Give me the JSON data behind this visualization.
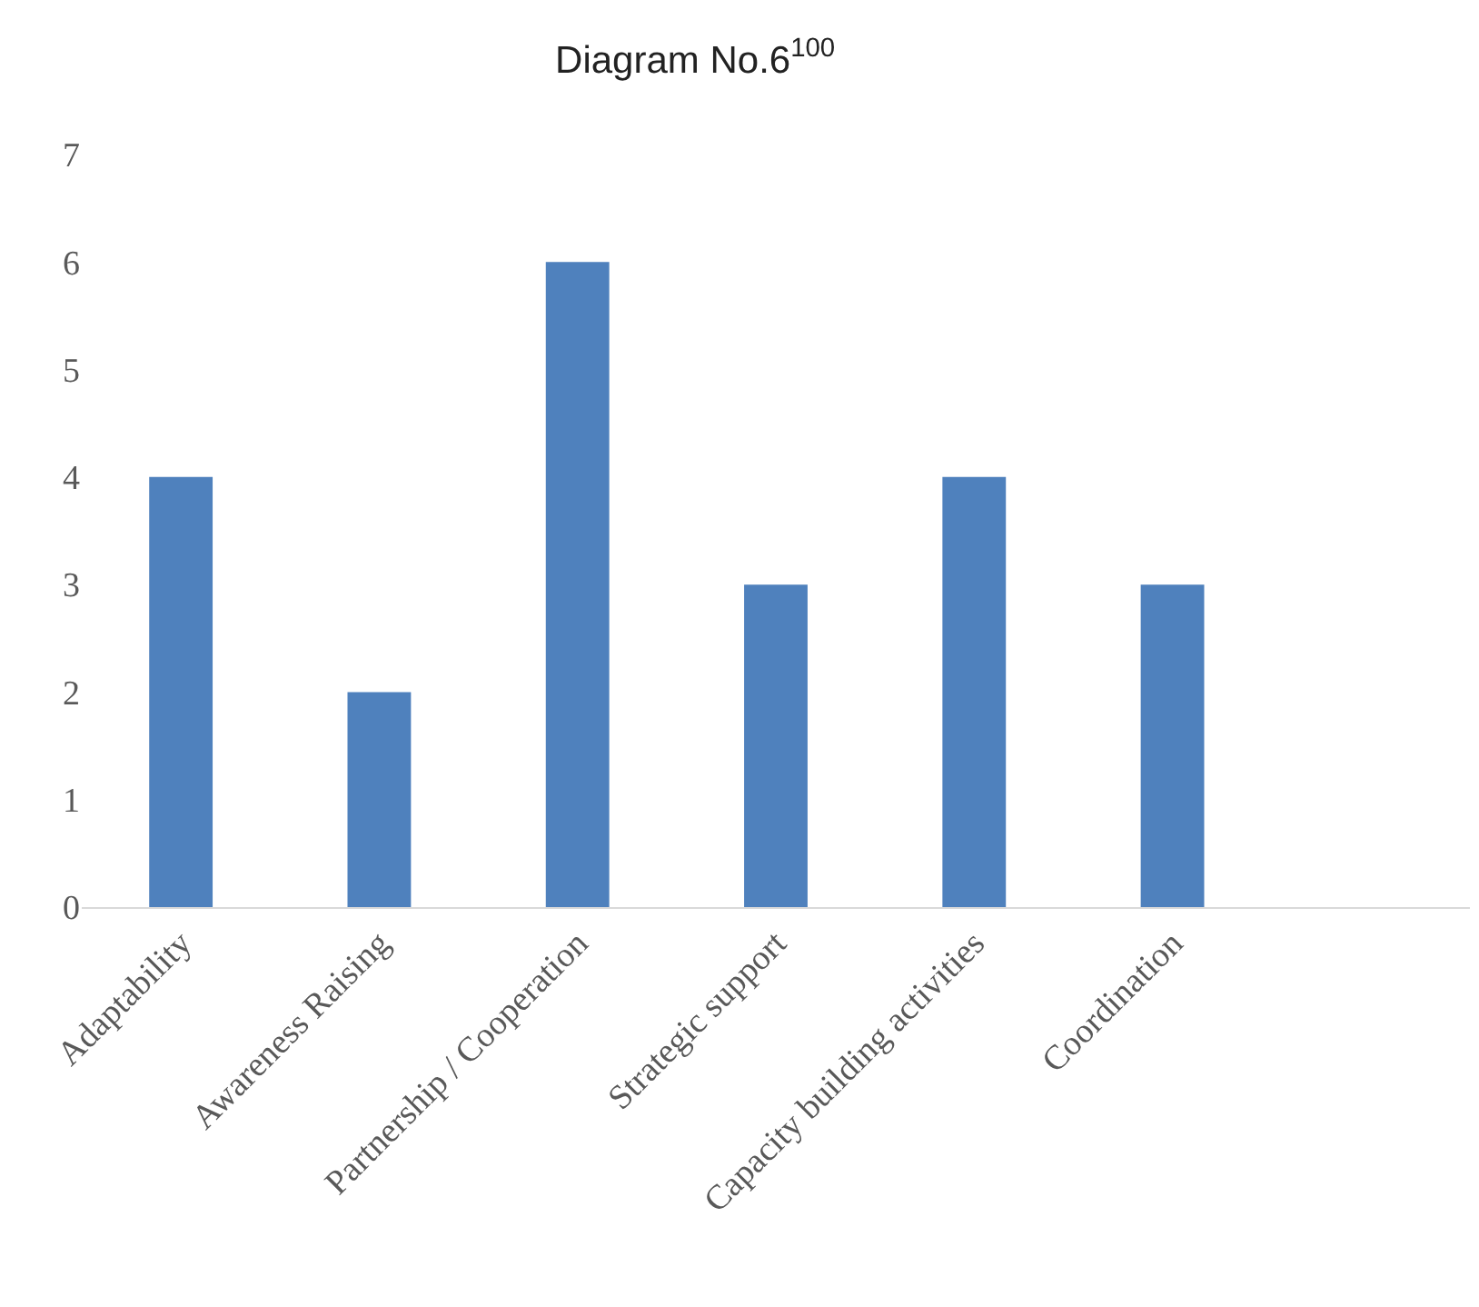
{
  "chart_data": {
    "type": "bar",
    "title": "Diagram No.6$^{100}$",
    "categories": [
      "Adaptability",
      "Awareness Raising",
      "Partnership / Cooperation",
      "Strategic support",
      "Capacity building activities",
      "Coordination",
      null
    ],
    "values": [
      4,
      2,
      6,
      3,
      4,
      3,
      null
    ],
    "color": "#4f81bd",
    "ylim": [
      0,
      7
    ],
    "yticks": [
      0,
      1,
      2,
      3,
      4,
      5,
      6,
      7
    ],
    "grid": false
  }
}
